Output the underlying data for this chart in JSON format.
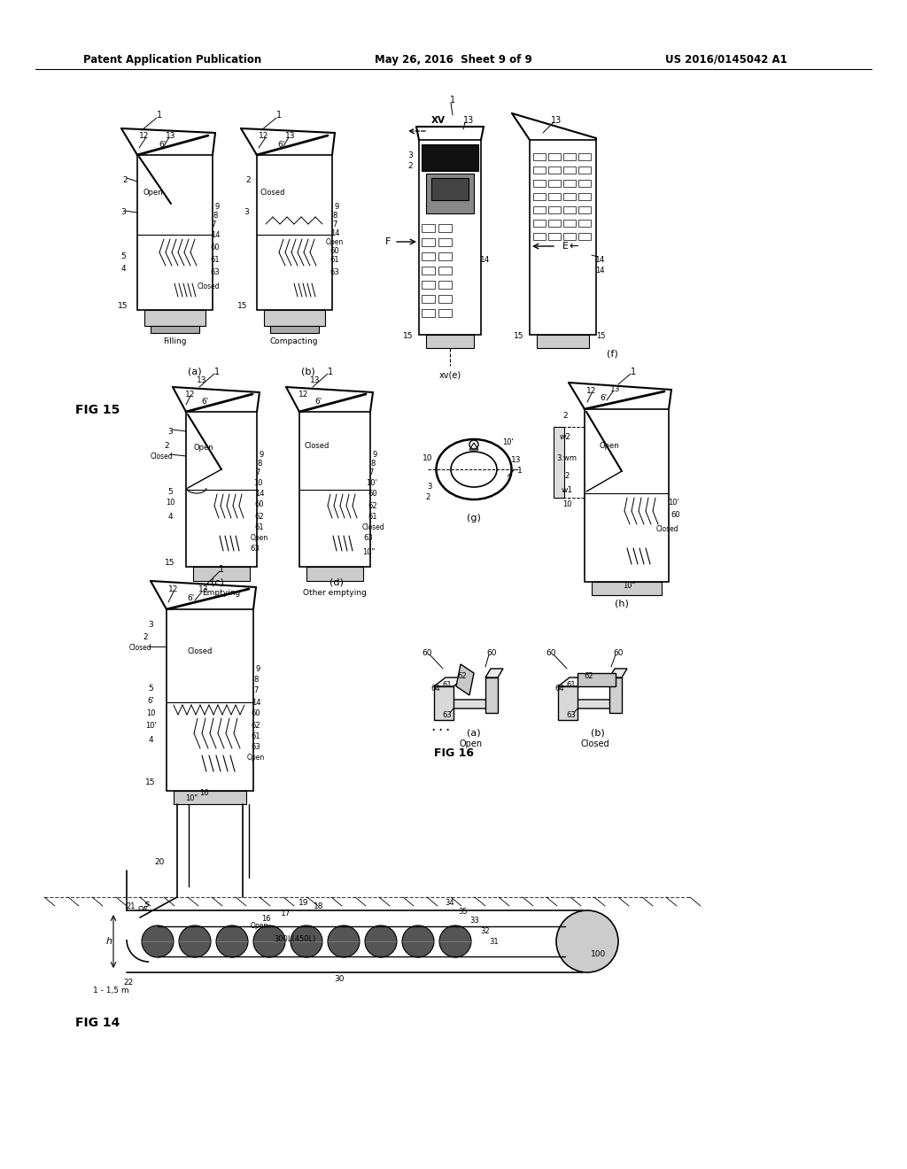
{
  "bg_color": "#ffffff",
  "header_left": "Patent Application Publication",
  "header_mid": "May 26, 2016  Sheet 9 of 9",
  "header_right": "US 2016/0145042 A1"
}
